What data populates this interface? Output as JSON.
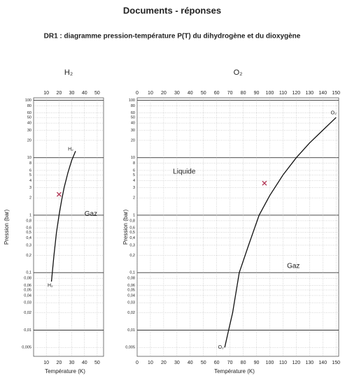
{
  "title": "Documents - réponses",
  "subtitle": "DR1 : diagramme pression-température P(T) du dihydrogène et du dioxygène",
  "chart_data": [
    {
      "type": "line",
      "title": "H₂",
      "x_label": "Température (K)",
      "y_label": "Pression (bar)",
      "log_y": true,
      "grid": true,
      "color": "#111111",
      "x": [
        14,
        16,
        18,
        20,
        22,
        24,
        27,
        30,
        33
      ],
      "values": [
        0.07,
        0.2,
        0.5,
        1,
        1.8,
        3,
        5.5,
        9,
        13
      ],
      "markers": {
        "x": [
          20
        ],
        "values": [
          2.3
        ],
        "color": "#b03050"
      },
      "annotations": [
        {
          "text": "Gaz",
          "x": 40,
          "y": 1.05
        },
        {
          "text": "H₂",
          "x": 11,
          "y": 0.06
        },
        {
          "text": "H₂",
          "x": 27,
          "y": 14
        }
      ],
      "xlim": [
        0,
        55
      ],
      "xticks": [
        10,
        20,
        30,
        40,
        50
      ],
      "ylim": [
        0.0035,
        110
      ],
      "yticks": [
        100,
        80,
        60,
        50,
        40,
        30,
        20,
        10,
        8,
        6,
        5,
        4,
        3,
        2,
        1,
        {
          "value": 0.8,
          "label": "0,8"
        },
        {
          "value": 0.6,
          "label": "0,6"
        },
        {
          "value": 0.5,
          "label": "0,5"
        },
        {
          "value": 0.4,
          "label": "0,4"
        },
        {
          "value": 0.3,
          "label": "0,3"
        },
        {
          "value": 0.2,
          "label": "0,2"
        },
        {
          "value": 0.1,
          "label": "0,1"
        },
        {
          "value": 0.08,
          "label": "0,08"
        },
        {
          "value": 0.06,
          "label": "0,06"
        },
        {
          "value": 0.05,
          "label": "0,05"
        },
        {
          "value": 0.04,
          "label": "0,04"
        },
        {
          "value": 0.03,
          "label": "0,03"
        },
        {
          "value": 0.02,
          "label": "0,02"
        },
        {
          "value": 0.01,
          "label": "0,01"
        },
        {
          "value": 0.005,
          "label": "0,005"
        }
      ]
    },
    {
      "type": "line",
      "title": "O₂",
      "x_label": "Température (K)",
      "y_label": "Pression (bar)",
      "log_y": true,
      "grid": true,
      "color": "#111111",
      "x": [
        66,
        69,
        72,
        77,
        84,
        92,
        100,
        110,
        120,
        130,
        140,
        150
      ],
      "values": [
        0.005,
        0.01,
        0.02,
        0.1,
        0.3,
        1,
        2.2,
        5,
        10,
        18,
        30,
        50
      ],
      "markers": {
        "x": [
          96
        ],
        "values": [
          3.6
        ],
        "color": "#b03050"
      },
      "annotations": [
        {
          "text": "Liquide",
          "x": 27,
          "y": 5.7
        },
        {
          "text": "Gaz",
          "x": 113,
          "y": 0.13
        },
        {
          "text": "O₂",
          "x": 146,
          "y": 60
        },
        {
          "text": "O₂",
          "x": 61,
          "y": 0.005
        }
      ],
      "xlim": [
        0,
        152
      ],
      "xticks": [
        0,
        10,
        20,
        30,
        40,
        50,
        60,
        70,
        80,
        90,
        100,
        110,
        120,
        130,
        140,
        150
      ],
      "ylim": [
        0.0035,
        110
      ],
      "yticks": [
        100,
        80,
        60,
        50,
        40,
        30,
        20,
        10,
        8,
        6,
        5,
        4,
        3,
        2,
        1,
        {
          "value": 0.8,
          "label": "0,8"
        },
        {
          "value": 0.6,
          "label": "0,6"
        },
        {
          "value": 0.5,
          "label": "0,5"
        },
        {
          "value": 0.4,
          "label": "0,4"
        },
        {
          "value": 0.3,
          "label": "0,3"
        },
        {
          "value": 0.2,
          "label": "0,2"
        },
        {
          "value": 0.1,
          "label": "0,1"
        },
        {
          "value": 0.08,
          "label": "0,08"
        },
        {
          "value": 0.06,
          "label": "0,06"
        },
        {
          "value": 0.05,
          "label": "0,05"
        },
        {
          "value": 0.04,
          "label": "0,04"
        },
        {
          "value": 0.03,
          "label": "0,03"
        },
        {
          "value": 0.02,
          "label": "0,02"
        },
        {
          "value": 0.01,
          "label": "0,01"
        },
        {
          "value": 0.005,
          "label": "0,005"
        }
      ]
    }
  ]
}
